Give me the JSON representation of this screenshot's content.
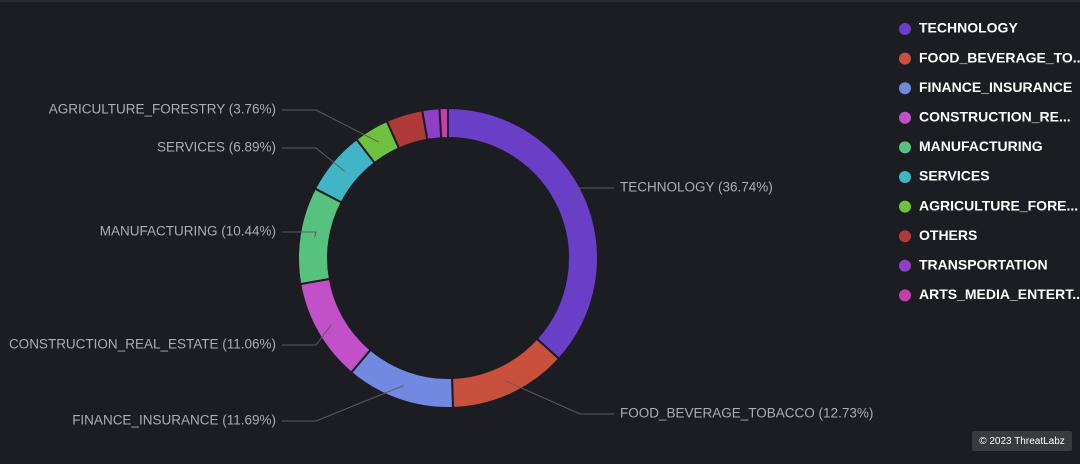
{
  "chart_data": {
    "type": "pie",
    "categories": [
      "TECHNOLOGY",
      "FOOD_BEVERAGE_TO...",
      "FINANCE_INSURANCE",
      "CONSTRUCTION_RE...",
      "MANUFACTURING",
      "SERVICES",
      "AGRICULTURE_FORE...",
      "OTHERS",
      "TRANSPORTATION",
      "ARTS_MEDIA_ENTERT..."
    ],
    "values": [
      36.74,
      12.73,
      11.69,
      11.06,
      10.44,
      6.89,
      3.76,
      3.94,
      1.85,
      0.9
    ],
    "value_labels": [
      "TECHNOLOGY (36.74%)",
      "FOOD_BEVERAGE_TOBACCO (12.73%)",
      "FINANCE_INSURANCE (11.69%)",
      "CONSTRUCTION_REAL_ESTATE (11.06%)",
      "MANUFACTURING (10.44%)",
      "SERVICES (6.89%)",
      "AGRICULTURE_FORESTRY (3.76%)",
      null,
      null,
      null
    ],
    "colors": [
      "#6a3fc8",
      "#c9503d",
      "#7189e0",
      "#c150c9",
      "#56c27d",
      "#3fb5c6",
      "#6fc23f",
      "#b03a3a",
      "#8f3fc8",
      "#c63fa8"
    ],
    "legend": "right",
    "credit": "© 2023 ThreatLabz"
  }
}
